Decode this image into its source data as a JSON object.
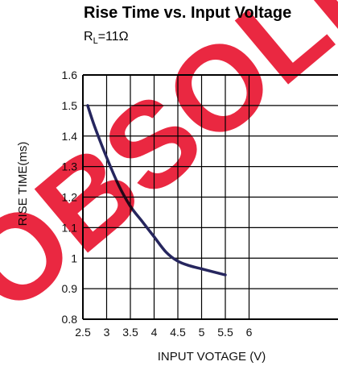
{
  "chart_data": {
    "type": "line",
    "title": "Rise Time vs. Input Voltage",
    "subtitle_main": "R",
    "subtitle_sub": "L",
    "subtitle_rest": "=11Ω",
    "xlabel": "INPUT VOTAGE (V)",
    "ylabel": "RISE TIME(ms)",
    "xlim": [
      2.5,
      6
    ],
    "ylim": [
      0.8,
      1.6
    ],
    "x_ticks": [
      2.5,
      3,
      3.5,
      4,
      4.5,
      5,
      5.5,
      6
    ],
    "x_tick_labels": [
      "2.5",
      "3",
      "3.5",
      "4",
      "4.5",
      "5",
      "5.5",
      "6"
    ],
    "y_ticks": [
      0.8,
      0.9,
      1.0,
      1.1,
      1.2,
      1.3,
      1.4,
      1.5,
      1.6
    ],
    "y_tick_labels": [
      "0.8",
      "0.9",
      "1",
      "1.1",
      "1.2",
      "1.3",
      "1.4",
      "1.5",
      "1.6"
    ],
    "grid": true,
    "series": [
      {
        "color": "#26265e",
        "x": [
          2.6,
          2.75,
          3.0,
          3.25,
          3.5,
          3.75,
          4.0,
          4.25,
          4.5,
          4.75,
          5.0,
          5.25,
          5.5
        ],
        "y": [
          1.5,
          1.43,
          1.33,
          1.24,
          1.17,
          1.12,
          1.07,
          1.02,
          0.99,
          0.975,
          0.965,
          0.955,
          0.945
        ]
      }
    ]
  },
  "watermark": {
    "text": "OBSOLETE",
    "color": "#e8112d"
  }
}
